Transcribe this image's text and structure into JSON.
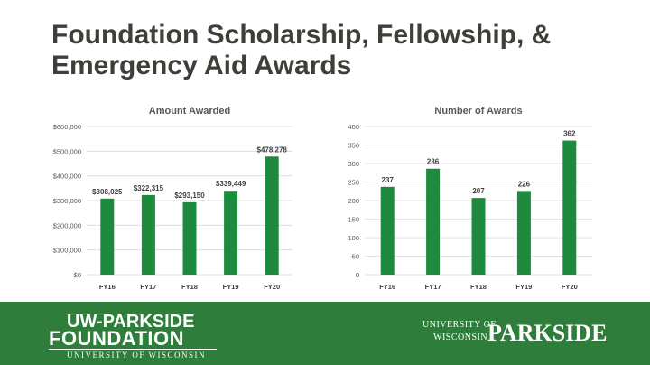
{
  "slide": {
    "title": "Foundation Scholarship, Fellowship, & Emergency Aid Awards"
  },
  "colors": {
    "bar": "#1e8a3e",
    "footer": "#2e7d3a",
    "title": "#3f3f3a"
  },
  "chart_data": [
    {
      "type": "bar",
      "title": "Amount Awarded",
      "categories": [
        "FY16",
        "FY17",
        "FY18",
        "FY19",
        "FY20"
      ],
      "values": [
        308025,
        322315,
        293150,
        339449,
        478278
      ],
      "value_labels": [
        "$308,025",
        "$322,315",
        "$293,150",
        "$339,449",
        "$478,278"
      ],
      "ylim": [
        0,
        600000
      ],
      "yticks": [
        0,
        100000,
        200000,
        300000,
        400000,
        500000,
        600000
      ],
      "ytick_labels": [
        "$0",
        "$100,000",
        "$200,000",
        "$300,000",
        "$400,000",
        "$500,000",
        "$600,000"
      ],
      "grid": true
    },
    {
      "type": "bar",
      "title": "Number of Awards",
      "categories": [
        "FY16",
        "FY17",
        "FY18",
        "FY19",
        "FY20"
      ],
      "values": [
        237,
        286,
        207,
        226,
        362
      ],
      "value_labels": [
        "237",
        "286",
        "207",
        "226",
        "362"
      ],
      "ylim": [
        0,
        400
      ],
      "yticks": [
        0,
        50,
        100,
        150,
        200,
        250,
        300,
        350,
        400
      ],
      "ytick_labels": [
        "0",
        "50",
        "100",
        "150",
        "200",
        "250",
        "300",
        "350",
        "400"
      ],
      "grid": true
    }
  ],
  "footer": {
    "left_logo": {
      "line1": "UW-PARKSIDE",
      "line2": "FOUNDATION",
      "line3": "UNIVERSITY OF WISCONSIN"
    },
    "right_logo": {
      "line1": "UNIVERSITY OF",
      "line2": "WISCONSIN",
      "big": "PARKSIDE"
    }
  }
}
